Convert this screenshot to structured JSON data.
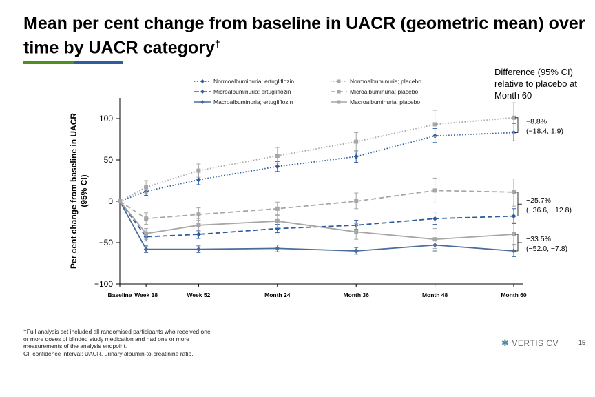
{
  "title": "Mean per cent change from baseline in UACR (geometric mean) over time by UACR category",
  "title_mark": "†",
  "accent_colors": [
    "#4f8f1f",
    "#2e5d9e"
  ],
  "diff_header": "Difference (95% CI) relative to placebo at Month 60",
  "footnote": {
    "line1": "†Full analysis set included all randomised participants who received one",
    "line2": "or more doses of blinded study medication and had one or more",
    "line3": "measurements of the analysis endpoint.",
    "line4": "CI, confidence interval; UACR, urinary albumin-to-creatinine ratio."
  },
  "brand": {
    "icon": "star-burst-icon",
    "name": "VERTIS CV"
  },
  "page_number": "15",
  "chart_data": {
    "type": "line",
    "categories": [
      "Baseline",
      "Week 18",
      "Week 52",
      "Month 24",
      "Month 36",
      "Month 48",
      "Month 60"
    ],
    "x_months": [
      0,
      4,
      12,
      24,
      36,
      48,
      60
    ],
    "ylabel": "Per cent change from baseline in UACR (95% CI)",
    "xlabel": "",
    "ylim": [
      -100,
      125
    ],
    "yticks": [
      -100,
      -50,
      0,
      50,
      100
    ],
    "grid": false,
    "legend_position": "top",
    "series": [
      {
        "name": "Normoalbuminuria; ertugliflozin",
        "color": "#2e5d9e",
        "dash": "1.5,2.5",
        "marker": "diamond",
        "values": [
          0,
          12,
          26,
          42,
          54,
          79,
          83
        ],
        "ci": [
          null,
          [
            7,
            17
          ],
          [
            20,
            33
          ],
          [
            36,
            48
          ],
          [
            47,
            61
          ],
          [
            71,
            88
          ],
          [
            73,
            94
          ]
        ]
      },
      {
        "name": "Normoalbuminuria; placebo",
        "color": "#a6a6a6",
        "dash": "1.5,2.5",
        "marker": "square",
        "values": [
          0,
          17,
          37,
          55,
          72,
          93,
          101
        ],
        "ci": [
          null,
          [
            10,
            25
          ],
          [
            29,
            45
          ],
          [
            46,
            65
          ],
          [
            61,
            83
          ],
          [
            78,
            110
          ],
          [
            82,
            119
          ]
        ]
      },
      {
        "name": "Microalbuminuria; ertugliflozin",
        "color": "#2e5d9e",
        "dash": "7,4",
        "marker": "diamond",
        "values": [
          0,
          -43,
          -40,
          -33,
          -29,
          -21,
          -18
        ],
        "ci": [
          null,
          [
            -48,
            -37
          ],
          [
            -45,
            -35
          ],
          [
            -38,
            -28
          ],
          [
            -34,
            -23
          ],
          [
            -28,
            -13
          ],
          [
            -27,
            -9
          ]
        ]
      },
      {
        "name": "Microalbuminuria; placebo",
        "color": "#a6a6a6",
        "dash": "7,4",
        "marker": "square",
        "values": [
          0,
          -21,
          -16,
          -9,
          0,
          13,
          11
        ],
        "ci": [
          null,
          [
            -28,
            -14
          ],
          [
            -23,
            -8
          ],
          [
            -17,
            -1
          ],
          [
            -9,
            10
          ],
          [
            -2,
            28
          ],
          [
            -6,
            27
          ]
        ]
      },
      {
        "name": "Macroalbuminuria; ertugliflozin",
        "color": "#4a6c9b",
        "dash": "",
        "marker": "diamond",
        "values": [
          0,
          -58,
          -58,
          -57,
          -60,
          -53,
          -60
        ],
        "ci": [
          null,
          [
            -62,
            -54
          ],
          [
            -62,
            -54
          ],
          [
            -61,
            -53
          ],
          [
            -64,
            -56
          ],
          [
            -60,
            -47
          ],
          [
            -67,
            -53
          ]
        ]
      },
      {
        "name": "Macroalbuminuria; placebo",
        "color": "#a6a6a6",
        "dash": "",
        "marker": "square",
        "values": [
          0,
          -39,
          -29,
          -24,
          -37,
          -46,
          -40
        ],
        "ci": [
          null,
          [
            -46,
            -33
          ],
          [
            -36,
            -21
          ],
          [
            -32,
            -16
          ],
          [
            -46,
            -27
          ],
          [
            -57,
            -33
          ],
          [
            -52,
            -26
          ]
        ]
      }
    ],
    "annotations": [
      {
        "y_range": [
          83,
          101
        ],
        "label_line1": "−8.8%",
        "label_line2": "(−18.4, 1.9)"
      },
      {
        "y_range": [
          -18,
          11
        ],
        "label_line1": "−25.7%",
        "label_line2": "(−36.6, −12.8)"
      },
      {
        "y_range": [
          -60,
          -40
        ],
        "label_line1": "−33.5%",
        "label_line2": "(−52.0, −7.8)"
      }
    ]
  }
}
